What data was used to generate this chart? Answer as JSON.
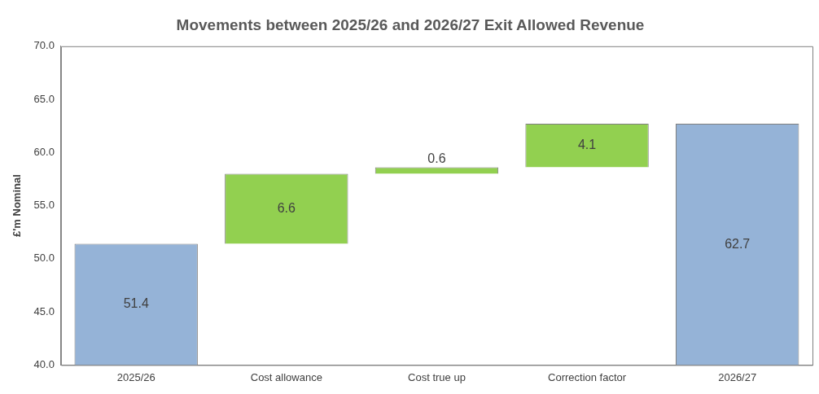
{
  "chart_data": {
    "type": "bar",
    "title": "Movements between 2025/26 and 2026/27 Exit Allowed Revenue",
    "ylabel": "£'m Nominal",
    "categories": [
      "2025/26",
      "Cost allowance",
      "Cost true up",
      "Correction factor",
      "2026/27"
    ],
    "values": [
      51.4,
      6.6,
      0.6,
      4.1,
      62.7
    ],
    "base": [
      null,
      51.4,
      58.0,
      58.6,
      null
    ],
    "colors": [
      "#95b3d7",
      "#92d050",
      "#92d050",
      "#92d050",
      "#95b3d7"
    ],
    "ylim": [
      40,
      70
    ],
    "yticks": [
      {
        "value": 40,
        "label": "40.0"
      },
      {
        "value": 45,
        "label": "45.0"
      },
      {
        "value": 50,
        "label": "50.0"
      },
      {
        "value": 55,
        "label": "55.0"
      },
      {
        "value": 60,
        "label": "60.0"
      },
      {
        "value": 65,
        "label": "65.0"
      },
      {
        "value": 70,
        "label": "70.0"
      }
    ],
    "grid": false,
    "legend": false,
    "data_labels": true
  }
}
